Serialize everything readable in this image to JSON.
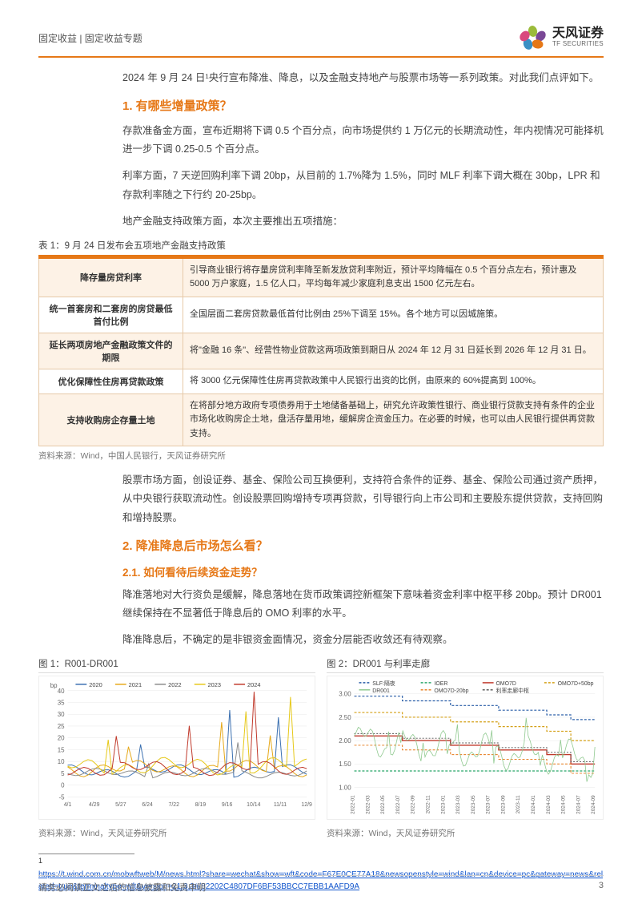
{
  "header": {
    "category": "固定收益 | 固定收益专题",
    "logo_cn": "天风证券",
    "logo_en": "TF SECURITIES"
  },
  "intro": "2024 年 9 月 24 日¹央行宣布降准、降息，以及金融支持地产与股票市场等一系列政策。对此我们点评如下。",
  "section1": {
    "title": "1. 有哪些增量政策？",
    "p1": "存款准备金方面，宣布近期将下调 0.5 个百分点，向市场提供约 1 万亿元的长期流动性，年内视情况可能择机进一步下调 0.25-0.5 个百分点。",
    "p2": "利率方面，7 天逆回购利率下调 20bp，从目前的 1.7%降为 1.5%，同时 MLF 利率下调大概在 30bp，LPR 和存款利率随之下行约 20-25bp。",
    "p3": "地产金融支持政策方面，本次主要推出五项措施："
  },
  "table1": {
    "caption": "表 1：9 月 24 日发布会五项地产金融支持政策",
    "rows": [
      {
        "l": "降存量房贷利率",
        "r": "引导商业银行将存量房贷利率降至新发放贷利率附近，预计平均降幅在 0.5 个百分点左右，预计惠及 5000 万户家庭，1.5 亿人口，平均每年减少家庭利息支出 1500 亿元左右。",
        "shade": true
      },
      {
        "l": "统一首套房和二套房的房贷最低首付比例",
        "r": "全国层面二套房贷款最低首付比例由 25%下调至 15%。各个地方可以因城施策。",
        "shade": false
      },
      {
        "l": "延长两项房地产金融政策文件的期限",
        "r": "将\"金融 16 条\"、经营性物业贷款这两项政策到期日从 2024 年 12 月 31 日延长到 2026 年 12 月 31 日。",
        "shade": true
      },
      {
        "l": "优化保障性住房再贷款政策",
        "r": "将 3000 亿元保障性住房再贷款政策中人民银行出资的比例，由原来的 60%提高到 100%。",
        "shade": false
      },
      {
        "l": "支持收购房企存量土地",
        "r": "在将部分地方政府专项债券用于土地储备基础上，研究允许政策性银行、商业银行贷款支持有条件的企业市场化收购房企土地，盘活存量用地，缓解房企资金压力。在必要的时候，也可以由人民银行提供再贷款支持。",
        "shade": true
      }
    ],
    "source": "资料来源：Wind，中国人民银行，天风证券研究所"
  },
  "stock_para": "股票市场方面，创设证券、基金、保险公司互换便利，支持符合条件的证券、基金、保险公司通过资产质押，从中央银行获取流动性。创设股票回购增持专项再贷款，引导银行向上市公司和主要股东提供贷款，支持回购和增持股票。",
  "section2": {
    "title": "2. 降准降息后市场怎么看？",
    "sub1_title": "2.1. 如何看待后续资金走势？",
    "p1": "降准落地对大行资负是缓解，降息落地在货币政策调控新框架下意味着资金利率中枢平移 20bp。预计 DR001 继续保持在不显著低于降息后的 OMO 利率的水平。",
    "p2": "降准降息后，不确定的是非银资金面情况，资金分层能否收敛还有待观察。"
  },
  "chart1": {
    "title": "图 1：R001-DR001",
    "type": "line",
    "ylabel": "bp",
    "ylim": [
      -5,
      40
    ],
    "yticks": [
      -5,
      0,
      5,
      10,
      15,
      20,
      25,
      30,
      35,
      40
    ],
    "xticks": [
      "4/1",
      "4/29",
      "5/27",
      "6/24",
      "7/22",
      "8/19",
      "9/16",
      "10/14",
      "11/11",
      "12/9"
    ],
    "series": [
      {
        "name": "2020",
        "color": "#3a6fb0"
      },
      {
        "name": "2021",
        "color": "#e6a817"
      },
      {
        "name": "2022",
        "color": "#8a8a8a"
      },
      {
        "name": "2023",
        "color": "#e6c817"
      },
      {
        "name": "2024",
        "color": "#c0392b"
      }
    ],
    "grid_color": "#e8e8e8",
    "source": "资料来源：Wind，天风证券研究所"
  },
  "chart2": {
    "title": "图 2：DR001 与利率走廊",
    "type": "line",
    "ylim": [
      1.0,
      3.0
    ],
    "yticks": [
      1.0,
      1.5,
      2.0,
      2.5,
      3.0
    ],
    "xticks": [
      "2022-01",
      "2022-03",
      "2022-05",
      "2022-07",
      "2022-09",
      "2022-11",
      "2023-01",
      "2023-03",
      "2023-05",
      "2023-07",
      "2023-09",
      "2023-11",
      "2024-01",
      "2024-03",
      "2024-05",
      "2024-07",
      "2024-09"
    ],
    "series": [
      {
        "name": "SLF:隔夜",
        "color": "#2a5ea8",
        "dash": true
      },
      {
        "name": "IOER",
        "color": "#2aa86b",
        "dash": true
      },
      {
        "name": "OMO7D",
        "color": "#c0392b",
        "dash": false
      },
      {
        "name": "OMO7D+50bp",
        "color": "#d4a017",
        "dash": true
      },
      {
        "name": "DR001",
        "color": "#8fc98f",
        "dash": false
      },
      {
        "name": "OMO7D-20bp",
        "color": "#e67817",
        "dash": true
      },
      {
        "name": "利率走廊中枢",
        "color": "#555",
        "dash": true
      }
    ],
    "grid_color": "#e8e8e8",
    "source": "资料来源：Wind，天风证券研究所"
  },
  "footnote": {
    "num": "1",
    "url": "https://t.wind.com.cn/mobwftweb/M/news.html?share=wechat&show=wft&code=F67E0CE77A18&newsopenstyle=wind&lan=cn&device=pc&gateway=news&related=true&terminaltype=wft&version=21.3.3#/82202C4807DF6BF53BBCC7EBB1AAFD9A"
  },
  "footer": {
    "text": "请务必阅读正文之后的信息披露和免责申明",
    "page": "3"
  }
}
